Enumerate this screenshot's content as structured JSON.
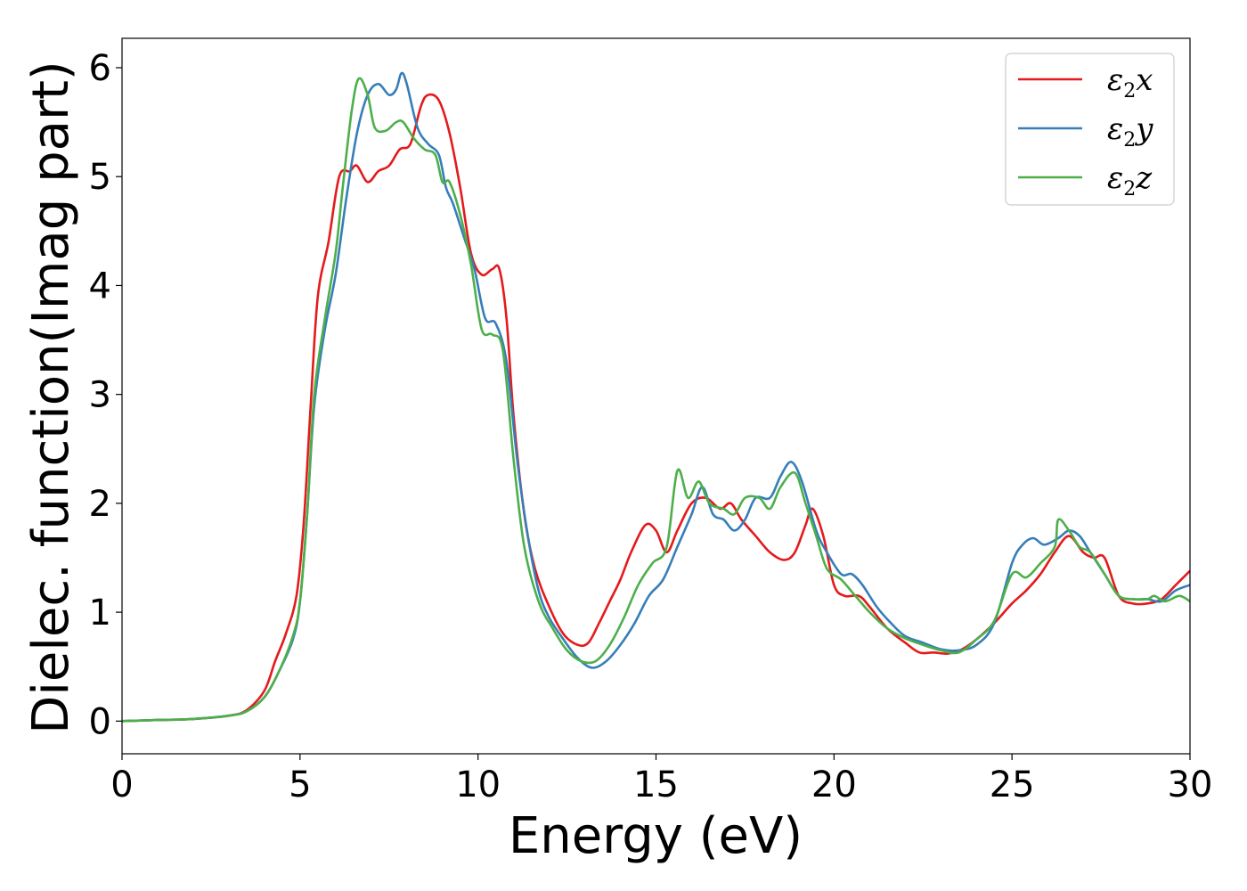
{
  "chart_data": {
    "type": "line",
    "xlabel": "Energy (eV)",
    "ylabel": "Dielec. function(Imag part)",
    "xlim": [
      0,
      30
    ],
    "ylim": [
      -0.3,
      6.27
    ],
    "xticks": [
      0,
      5,
      10,
      15,
      20,
      25,
      30
    ],
    "yticks": [
      0,
      1,
      2,
      3,
      4,
      5,
      6
    ],
    "grid": false,
    "legend_position": "top-right",
    "series": [
      {
        "name": "ε2x",
        "name_base": "ε",
        "name_sub": "2",
        "name_suffix": "x",
        "color": "#e41a1c",
        "points": [
          [
            0,
            0.0
          ],
          [
            1,
            0.01
          ],
          [
            2,
            0.02
          ],
          [
            3,
            0.05
          ],
          [
            3.5,
            0.1
          ],
          [
            4,
            0.28
          ],
          [
            4.3,
            0.55
          ],
          [
            4.6,
            0.8
          ],
          [
            4.9,
            1.15
          ],
          [
            5.1,
            1.8
          ],
          [
            5.3,
            2.9
          ],
          [
            5.5,
            3.9
          ],
          [
            5.8,
            4.4
          ],
          [
            6.1,
            5.0
          ],
          [
            6.4,
            5.05
          ],
          [
            6.6,
            5.1
          ],
          [
            6.9,
            4.95
          ],
          [
            7.2,
            5.05
          ],
          [
            7.5,
            5.1
          ],
          [
            7.8,
            5.25
          ],
          [
            8.1,
            5.3
          ],
          [
            8.4,
            5.65
          ],
          [
            8.6,
            5.75
          ],
          [
            8.9,
            5.7
          ],
          [
            9.2,
            5.4
          ],
          [
            9.5,
            4.9
          ],
          [
            9.8,
            4.3
          ],
          [
            10.1,
            4.1
          ],
          [
            10.4,
            4.15
          ],
          [
            10.6,
            4.15
          ],
          [
            10.8,
            3.7
          ],
          [
            11.0,
            2.8
          ],
          [
            11.3,
            1.9
          ],
          [
            11.6,
            1.4
          ],
          [
            12.0,
            1.05
          ],
          [
            12.4,
            0.8
          ],
          [
            12.8,
            0.7
          ],
          [
            13.1,
            0.72
          ],
          [
            13.4,
            0.9
          ],
          [
            13.7,
            1.1
          ],
          [
            14.0,
            1.3
          ],
          [
            14.3,
            1.55
          ],
          [
            14.7,
            1.8
          ],
          [
            15.0,
            1.75
          ],
          [
            15.3,
            1.55
          ],
          [
            15.6,
            1.75
          ],
          [
            16.0,
            2.0
          ],
          [
            16.4,
            2.05
          ],
          [
            16.8,
            1.95
          ],
          [
            17.1,
            2.0
          ],
          [
            17.4,
            1.85
          ],
          [
            17.8,
            1.7
          ],
          [
            18.2,
            1.55
          ],
          [
            18.6,
            1.48
          ],
          [
            18.9,
            1.55
          ],
          [
            19.2,
            1.8
          ],
          [
            19.4,
            1.95
          ],
          [
            19.7,
            1.7
          ],
          [
            20.0,
            1.25
          ],
          [
            20.3,
            1.15
          ],
          [
            20.7,
            1.15
          ],
          [
            21.0,
            1.05
          ],
          [
            21.5,
            0.85
          ],
          [
            22.0,
            0.72
          ],
          [
            22.4,
            0.63
          ],
          [
            22.8,
            0.63
          ],
          [
            23.2,
            0.62
          ],
          [
            23.6,
            0.66
          ],
          [
            24.0,
            0.75
          ],
          [
            24.5,
            0.9
          ],
          [
            25.0,
            1.08
          ],
          [
            25.4,
            1.2
          ],
          [
            25.8,
            1.35
          ],
          [
            26.2,
            1.55
          ],
          [
            26.6,
            1.7
          ],
          [
            27.0,
            1.55
          ],
          [
            27.3,
            1.5
          ],
          [
            27.6,
            1.5
          ],
          [
            28.0,
            1.15
          ],
          [
            28.4,
            1.08
          ],
          [
            28.8,
            1.08
          ],
          [
            29.2,
            1.12
          ],
          [
            29.6,
            1.25
          ],
          [
            30.0,
            1.38
          ]
        ]
      },
      {
        "name": "ε2y",
        "name_base": "ε",
        "name_sub": "2",
        "name_suffix": "y",
        "color": "#377eb8",
        "points": [
          [
            0,
            0.0
          ],
          [
            1,
            0.01
          ],
          [
            2,
            0.02
          ],
          [
            3,
            0.05
          ],
          [
            3.5,
            0.09
          ],
          [
            4,
            0.22
          ],
          [
            4.4,
            0.45
          ],
          [
            4.8,
            0.75
          ],
          [
            5.0,
            1.1
          ],
          [
            5.2,
            1.9
          ],
          [
            5.4,
            2.9
          ],
          [
            5.7,
            3.6
          ],
          [
            6.0,
            4.1
          ],
          [
            6.3,
            4.8
          ],
          [
            6.6,
            5.4
          ],
          [
            6.9,
            5.75
          ],
          [
            7.2,
            5.85
          ],
          [
            7.5,
            5.75
          ],
          [
            7.7,
            5.8
          ],
          [
            7.85,
            5.95
          ],
          [
            8.0,
            5.85
          ],
          [
            8.3,
            5.45
          ],
          [
            8.6,
            5.3
          ],
          [
            8.9,
            5.2
          ],
          [
            9.1,
            4.9
          ],
          [
            9.3,
            4.75
          ],
          [
            9.6,
            4.45
          ],
          [
            9.9,
            4.15
          ],
          [
            10.2,
            3.7
          ],
          [
            10.5,
            3.65
          ],
          [
            10.8,
            3.3
          ],
          [
            11.1,
            2.4
          ],
          [
            11.4,
            1.7
          ],
          [
            11.7,
            1.2
          ],
          [
            12.0,
            0.95
          ],
          [
            12.4,
            0.75
          ],
          [
            12.8,
            0.58
          ],
          [
            13.2,
            0.49
          ],
          [
            13.6,
            0.55
          ],
          [
            14.0,
            0.7
          ],
          [
            14.4,
            0.9
          ],
          [
            14.8,
            1.15
          ],
          [
            15.2,
            1.3
          ],
          [
            15.6,
            1.6
          ],
          [
            16.0,
            1.9
          ],
          [
            16.3,
            2.15
          ],
          [
            16.6,
            1.9
          ],
          [
            16.9,
            1.85
          ],
          [
            17.2,
            1.75
          ],
          [
            17.5,
            1.85
          ],
          [
            17.8,
            2.05
          ],
          [
            18.2,
            2.05
          ],
          [
            18.5,
            2.25
          ],
          [
            18.8,
            2.38
          ],
          [
            19.1,
            2.2
          ],
          [
            19.5,
            1.75
          ],
          [
            19.8,
            1.55
          ],
          [
            20.2,
            1.35
          ],
          [
            20.5,
            1.35
          ],
          [
            20.8,
            1.25
          ],
          [
            21.2,
            1.05
          ],
          [
            21.6,
            0.9
          ],
          [
            22.0,
            0.78
          ],
          [
            22.5,
            0.72
          ],
          [
            23.0,
            0.66
          ],
          [
            23.5,
            0.65
          ],
          [
            24.0,
            0.7
          ],
          [
            24.5,
            0.9
          ],
          [
            25.0,
            1.45
          ],
          [
            25.3,
            1.62
          ],
          [
            25.6,
            1.68
          ],
          [
            25.9,
            1.62
          ],
          [
            26.3,
            1.68
          ],
          [
            26.6,
            1.75
          ],
          [
            26.9,
            1.7
          ],
          [
            27.2,
            1.55
          ],
          [
            27.6,
            1.35
          ],
          [
            28.0,
            1.15
          ],
          [
            28.4,
            1.12
          ],
          [
            28.8,
            1.12
          ],
          [
            29.2,
            1.1
          ],
          [
            29.6,
            1.2
          ],
          [
            30.0,
            1.25
          ]
        ]
      },
      {
        "name": "ε2z",
        "name_base": "ε",
        "name_sub": "2",
        "name_suffix": "z",
        "color": "#4daf4a",
        "points": [
          [
            0,
            0.0
          ],
          [
            1,
            0.01
          ],
          [
            2,
            0.02
          ],
          [
            3,
            0.05
          ],
          [
            3.5,
            0.09
          ],
          [
            4,
            0.22
          ],
          [
            4.4,
            0.45
          ],
          [
            4.8,
            0.78
          ],
          [
            5.0,
            1.1
          ],
          [
            5.2,
            1.9
          ],
          [
            5.4,
            3.0
          ],
          [
            5.7,
            3.7
          ],
          [
            6.0,
            4.3
          ],
          [
            6.2,
            4.9
          ],
          [
            6.45,
            5.6
          ],
          [
            6.65,
            5.9
          ],
          [
            6.9,
            5.75
          ],
          [
            7.1,
            5.45
          ],
          [
            7.4,
            5.42
          ],
          [
            7.7,
            5.5
          ],
          [
            7.9,
            5.5
          ],
          [
            8.2,
            5.35
          ],
          [
            8.5,
            5.25
          ],
          [
            8.8,
            5.2
          ],
          [
            9.0,
            4.95
          ],
          [
            9.2,
            4.95
          ],
          [
            9.5,
            4.65
          ],
          [
            9.8,
            4.2
          ],
          [
            10.1,
            3.6
          ],
          [
            10.4,
            3.55
          ],
          [
            10.7,
            3.4
          ],
          [
            11.0,
            2.4
          ],
          [
            11.3,
            1.6
          ],
          [
            11.7,
            1.1
          ],
          [
            12.1,
            0.85
          ],
          [
            12.5,
            0.65
          ],
          [
            12.9,
            0.55
          ],
          [
            13.3,
            0.55
          ],
          [
            13.7,
            0.7
          ],
          [
            14.1,
            0.95
          ],
          [
            14.5,
            1.25
          ],
          [
            14.9,
            1.45
          ],
          [
            15.3,
            1.6
          ],
          [
            15.6,
            2.3
          ],
          [
            15.9,
            2.05
          ],
          [
            16.2,
            2.2
          ],
          [
            16.5,
            2.0
          ],
          [
            16.9,
            1.95
          ],
          [
            17.2,
            1.9
          ],
          [
            17.5,
            2.05
          ],
          [
            17.9,
            2.05
          ],
          [
            18.2,
            1.95
          ],
          [
            18.5,
            2.15
          ],
          [
            18.9,
            2.28
          ],
          [
            19.2,
            2.0
          ],
          [
            19.5,
            1.7
          ],
          [
            19.8,
            1.4
          ],
          [
            20.2,
            1.3
          ],
          [
            20.6,
            1.15
          ],
          [
            21.0,
            1.0
          ],
          [
            21.5,
            0.85
          ],
          [
            22.0,
            0.76
          ],
          [
            22.5,
            0.7
          ],
          [
            23.0,
            0.65
          ],
          [
            23.5,
            0.63
          ],
          [
            24.0,
            0.75
          ],
          [
            24.5,
            0.92
          ],
          [
            25.0,
            1.35
          ],
          [
            25.4,
            1.32
          ],
          [
            25.8,
            1.45
          ],
          [
            26.2,
            1.6
          ],
          [
            26.3,
            1.85
          ],
          [
            26.6,
            1.75
          ],
          [
            26.9,
            1.6
          ],
          [
            27.2,
            1.55
          ],
          [
            27.6,
            1.35
          ],
          [
            28.0,
            1.15
          ],
          [
            28.4,
            1.12
          ],
          [
            28.8,
            1.12
          ],
          [
            29.0,
            1.15
          ],
          [
            29.3,
            1.1
          ],
          [
            29.7,
            1.15
          ],
          [
            30.0,
            1.1
          ]
        ]
      }
    ]
  }
}
